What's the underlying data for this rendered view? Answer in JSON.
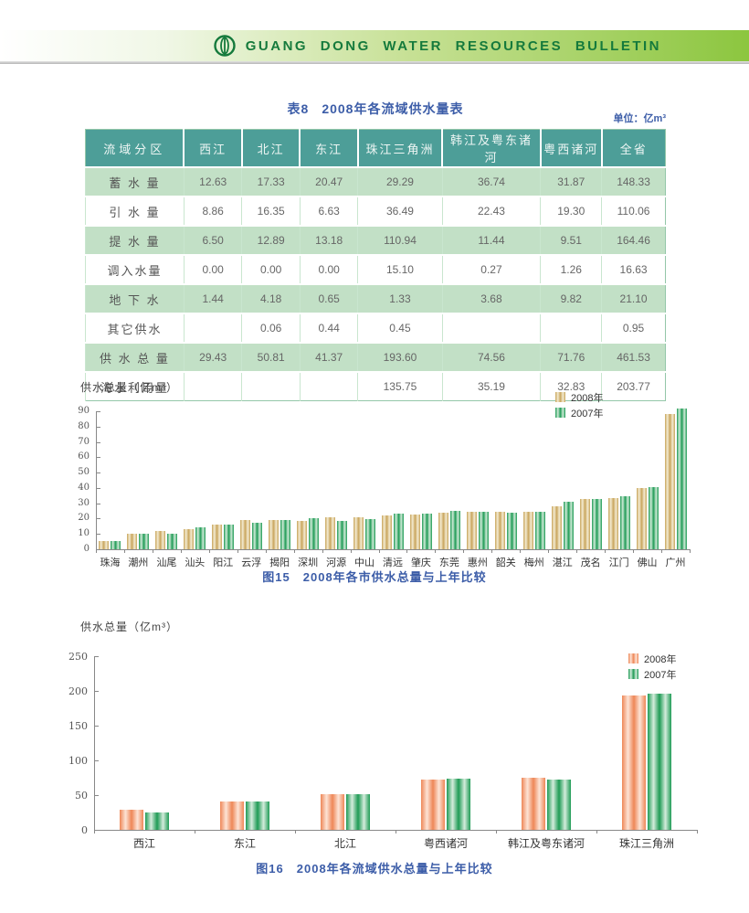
{
  "header": {
    "title": "GUANG DONG WATER RESOURCES BULLETIN"
  },
  "colors": {
    "banner_green": "#8cc63f",
    "banner_text_green": "#157a3c",
    "title_blue": "#3c5da8",
    "table_header_teal": "#4d9e98",
    "table_row_green": "#c2e0c6",
    "bar_2008_tan": "#c8a55c",
    "bar_2007_green": "#1f9b55",
    "bar_2008_orange": "#ee8757"
  },
  "table8": {
    "title_prefix": "表8",
    "title": "2008年各流域供水量表",
    "unit": "单位：亿m³",
    "columns": [
      "流域分区",
      "西江",
      "北江",
      "东江",
      "珠江三角洲",
      "韩江及粤东诸河",
      "粤西诸河",
      "全省"
    ],
    "rows": [
      {
        "label": "蓄 水 量",
        "values": [
          "12.63",
          "17.33",
          "20.47",
          "29.29",
          "36.74",
          "31.87",
          "148.33"
        ]
      },
      {
        "label": "引 水 量",
        "values": [
          "8.86",
          "16.35",
          "6.63",
          "36.49",
          "22.43",
          "19.30",
          "110.06"
        ]
      },
      {
        "label": "提 水 量",
        "values": [
          "6.50",
          "12.89",
          "13.18",
          "110.94",
          "11.44",
          "9.51",
          "164.46"
        ]
      },
      {
        "label": "调入水量",
        "values": [
          "0.00",
          "0.00",
          "0.00",
          "15.10",
          "0.27",
          "1.26",
          "16.63"
        ]
      },
      {
        "label": "地 下 水",
        "values": [
          "1.44",
          "4.18",
          "0.65",
          "1.33",
          "3.68",
          "9.82",
          "21.10"
        ]
      },
      {
        "label": "其它供水",
        "values": [
          "",
          "0.06",
          "0.44",
          "0.45",
          "",
          "",
          "0.95"
        ]
      },
      {
        "label": "供 水 总 量",
        "values": [
          "29.43",
          "50.81",
          "41.37",
          "193.60",
          "74.56",
          "71.76",
          "461.53"
        ]
      },
      {
        "label": "海水利用量",
        "values": [
          "",
          "",
          "",
          "135.75",
          "35.19",
          "32.83",
          "203.77"
        ]
      }
    ]
  },
  "chart_data": [
    {
      "id": "fig15",
      "type": "bar",
      "ylabel": "供水总量（亿m³）",
      "caption_prefix": "图15",
      "caption": "2008年各市供水总量与上年比较",
      "ylim": [
        0,
        90
      ],
      "ystep": 10,
      "grid": false,
      "legend_position": "top-right-inside",
      "categories": [
        "珠海",
        "潮州",
        "汕尾",
        "汕头",
        "阳江",
        "云浮",
        "揭阳",
        "深圳",
        "河源",
        "中山",
        "清远",
        "肇庆",
        "东莞",
        "惠州",
        "韶关",
        "梅州",
        "湛江",
        "茂名",
        "江门",
        "佛山",
        "广州"
      ],
      "series": [
        {
          "name": "2008年",
          "color_edge": "#c8a55c",
          "color_light": "#f3ead0",
          "values": [
            5.2,
            10.4,
            12.1,
            13.0,
            15.9,
            18.9,
            18.9,
            18.6,
            20.8,
            21.0,
            22.0,
            22.5,
            24.0,
            24.3,
            24.7,
            24.7,
            27.8,
            32.5,
            33.5,
            40.0,
            88.5
          ]
        },
        {
          "name": "2007年",
          "color_edge": "#1f9b55",
          "color_light": "#cde9d6",
          "values": [
            5.4,
            9.9,
            10.4,
            14.5,
            16.3,
            17.1,
            18.8,
            20.5,
            18.2,
            19.5,
            23.0,
            23.3,
            25.0,
            24.3,
            23.7,
            24.7,
            31.0,
            33.0,
            34.5,
            40.5,
            91.5
          ]
        }
      ]
    },
    {
      "id": "fig16",
      "type": "bar",
      "ylabel": "供水总量（亿m³）",
      "caption_prefix": "图16",
      "caption": "2008年各流域供水总量与上年比较",
      "ylim": [
        0,
        250
      ],
      "ystep": 50,
      "grid": false,
      "legend_position": "top-right-inside",
      "categories": [
        "西江",
        "东江",
        "北江",
        "粤西诸河",
        "韩江及粤东诸河",
        "珠江三角洲"
      ],
      "series": [
        {
          "name": "2008年",
          "color_edge": "#ee8757",
          "color_light": "#fde3d5",
          "values": [
            29.43,
            41.37,
            50.81,
            71.76,
            74.56,
            193.6
          ]
        },
        {
          "name": "2007年",
          "color_edge": "#1f9b55",
          "color_light": "#d4ecdc",
          "values": [
            25.5,
            41.0,
            51.0,
            73.5,
            73.0,
            196.5
          ]
        }
      ]
    }
  ]
}
